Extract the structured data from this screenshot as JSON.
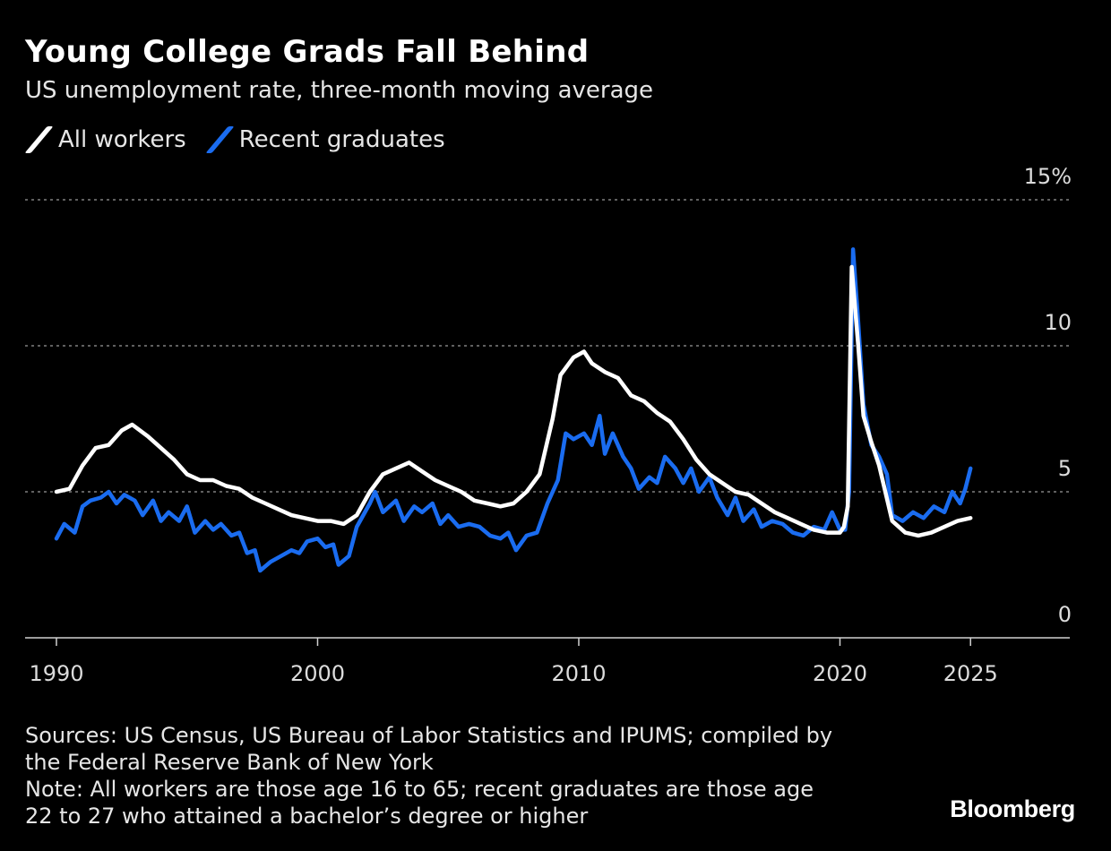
{
  "header": {
    "title": "Young College Grads Fall Behind",
    "subtitle": "US unemployment rate, three-month moving average"
  },
  "legend": [
    {
      "label": "All workers",
      "color": "#ffffff"
    },
    {
      "label": "Recent graduates",
      "color": "#1a6cf0"
    }
  ],
  "footer": {
    "sources_line1": "Sources: US Census, US Bureau of Labor Statistics and IPUMS; compiled by",
    "sources_line2": "the Federal Reserve Bank of New York",
    "note_line1": "Note: All workers are those age 16 to 65; recent graduates are those age",
    "note_line2": "22 to 27 who attained a bachelor’s degree or higher",
    "brand": "Bloomberg"
  },
  "chart_data": {
    "type": "line",
    "title": "Young College Grads Fall Behind",
    "subtitle": "US unemployment rate, three-month moving average",
    "xlabel": "",
    "ylabel": "",
    "xlim": [
      1988.8,
      2028.8
    ],
    "ylim": [
      0,
      15
    ],
    "x_ticks": [
      1990,
      2000,
      2010,
      2020,
      2025
    ],
    "x_tick_labels": [
      "1990",
      "2000",
      "2010",
      "2020",
      "2025"
    ],
    "y_ticks": [
      0,
      5,
      10,
      15
    ],
    "y_tick_labels": [
      "0",
      "5",
      "10",
      "15%"
    ],
    "grid": true,
    "legend_position": "top-left",
    "series": [
      {
        "name": "All workers",
        "color": "#ffffff",
        "points": [
          [
            1990.0,
            5.0
          ],
          [
            1990.5,
            5.1
          ],
          [
            1991.0,
            5.9
          ],
          [
            1991.5,
            6.5
          ],
          [
            1992.0,
            6.6
          ],
          [
            1992.5,
            7.1
          ],
          [
            1992.9,
            7.3
          ],
          [
            1993.5,
            6.9
          ],
          [
            1994.0,
            6.5
          ],
          [
            1994.5,
            6.1
          ],
          [
            1995.0,
            5.6
          ],
          [
            1995.5,
            5.4
          ],
          [
            1996.0,
            5.4
          ],
          [
            1996.5,
            5.2
          ],
          [
            1997.0,
            5.1
          ],
          [
            1997.5,
            4.8
          ],
          [
            1998.0,
            4.6
          ],
          [
            1998.5,
            4.4
          ],
          [
            1999.0,
            4.2
          ],
          [
            1999.5,
            4.1
          ],
          [
            2000.0,
            4.0
          ],
          [
            2000.5,
            4.0
          ],
          [
            2001.0,
            3.9
          ],
          [
            2001.5,
            4.2
          ],
          [
            2002.0,
            5.0
          ],
          [
            2002.5,
            5.6
          ],
          [
            2003.0,
            5.8
          ],
          [
            2003.5,
            6.0
          ],
          [
            2004.0,
            5.7
          ],
          [
            2004.5,
            5.4
          ],
          [
            2005.0,
            5.2
          ],
          [
            2005.5,
            5.0
          ],
          [
            2006.0,
            4.7
          ],
          [
            2006.5,
            4.6
          ],
          [
            2007.0,
            4.5
          ],
          [
            2007.5,
            4.6
          ],
          [
            2008.0,
            5.0
          ],
          [
            2008.5,
            5.6
          ],
          [
            2009.0,
            7.5
          ],
          [
            2009.3,
            9.0
          ],
          [
            2009.8,
            9.6
          ],
          [
            2010.2,
            9.8
          ],
          [
            2010.5,
            9.4
          ],
          [
            2011.0,
            9.1
          ],
          [
            2011.5,
            8.9
          ],
          [
            2012.0,
            8.3
          ],
          [
            2012.5,
            8.1
          ],
          [
            2013.0,
            7.7
          ],
          [
            2013.5,
            7.4
          ],
          [
            2014.0,
            6.8
          ],
          [
            2014.5,
            6.1
          ],
          [
            2015.0,
            5.6
          ],
          [
            2015.5,
            5.3
          ],
          [
            2016.0,
            5.0
          ],
          [
            2016.5,
            4.9
          ],
          [
            2017.0,
            4.6
          ],
          [
            2017.5,
            4.3
          ],
          [
            2018.0,
            4.1
          ],
          [
            2018.5,
            3.9
          ],
          [
            2019.0,
            3.7
          ],
          [
            2019.5,
            3.6
          ],
          [
            2020.0,
            3.6
          ],
          [
            2020.15,
            3.8
          ],
          [
            2020.3,
            4.5
          ],
          [
            2020.45,
            12.7
          ],
          [
            2020.7,
            10.0
          ],
          [
            2020.9,
            7.6
          ],
          [
            2021.2,
            6.7
          ],
          [
            2021.5,
            5.9
          ],
          [
            2022.0,
            4.0
          ],
          [
            2022.5,
            3.6
          ],
          [
            2023.0,
            3.5
          ],
          [
            2023.5,
            3.6
          ],
          [
            2024.0,
            3.8
          ],
          [
            2024.5,
            4.0
          ],
          [
            2025.0,
            4.1
          ]
        ]
      },
      {
        "name": "Recent graduates",
        "color": "#1a6cf0",
        "points": [
          [
            1990.0,
            3.4
          ],
          [
            1990.3,
            3.9
          ],
          [
            1990.7,
            3.6
          ],
          [
            1991.0,
            4.5
          ],
          [
            1991.3,
            4.7
          ],
          [
            1991.7,
            4.8
          ],
          [
            1992.0,
            5.0
          ],
          [
            1992.3,
            4.6
          ],
          [
            1992.6,
            4.9
          ],
          [
            1993.0,
            4.7
          ],
          [
            1993.3,
            4.2
          ],
          [
            1993.7,
            4.7
          ],
          [
            1994.0,
            4.0
          ],
          [
            1994.3,
            4.3
          ],
          [
            1994.7,
            4.0
          ],
          [
            1995.0,
            4.5
          ],
          [
            1995.3,
            3.6
          ],
          [
            1995.7,
            4.0
          ],
          [
            1996.0,
            3.7
          ],
          [
            1996.3,
            3.9
          ],
          [
            1996.7,
            3.5
          ],
          [
            1997.0,
            3.6
          ],
          [
            1997.3,
            2.9
          ],
          [
            1997.6,
            3.0
          ],
          [
            1997.8,
            2.3
          ],
          [
            1998.2,
            2.6
          ],
          [
            1998.6,
            2.8
          ],
          [
            1999.0,
            3.0
          ],
          [
            1999.3,
            2.9
          ],
          [
            1999.6,
            3.3
          ],
          [
            2000.0,
            3.4
          ],
          [
            2000.3,
            3.1
          ],
          [
            2000.6,
            3.2
          ],
          [
            2000.8,
            2.5
          ],
          [
            2001.2,
            2.8
          ],
          [
            2001.5,
            3.8
          ],
          [
            2002.0,
            4.6
          ],
          [
            2002.2,
            5.0
          ],
          [
            2002.5,
            4.3
          ],
          [
            2003.0,
            4.7
          ],
          [
            2003.3,
            4.0
          ],
          [
            2003.7,
            4.5
          ],
          [
            2004.0,
            4.3
          ],
          [
            2004.4,
            4.6
          ],
          [
            2004.7,
            3.9
          ],
          [
            2005.0,
            4.2
          ],
          [
            2005.4,
            3.8
          ],
          [
            2005.8,
            3.9
          ],
          [
            2006.2,
            3.8
          ],
          [
            2006.6,
            3.5
          ],
          [
            2007.0,
            3.4
          ],
          [
            2007.3,
            3.6
          ],
          [
            2007.6,
            3.0
          ],
          [
            2008.0,
            3.5
          ],
          [
            2008.4,
            3.6
          ],
          [
            2008.8,
            4.6
          ],
          [
            2009.2,
            5.4
          ],
          [
            2009.5,
            7.0
          ],
          [
            2009.8,
            6.8
          ],
          [
            2010.2,
            7.0
          ],
          [
            2010.5,
            6.6
          ],
          [
            2010.8,
            7.6
          ],
          [
            2011.0,
            6.3
          ],
          [
            2011.3,
            7.0
          ],
          [
            2011.7,
            6.2
          ],
          [
            2012.0,
            5.8
          ],
          [
            2012.3,
            5.1
          ],
          [
            2012.7,
            5.5
          ],
          [
            2013.0,
            5.3
          ],
          [
            2013.3,
            6.2
          ],
          [
            2013.7,
            5.8
          ],
          [
            2014.0,
            5.3
          ],
          [
            2014.3,
            5.8
          ],
          [
            2014.6,
            5.0
          ],
          [
            2015.0,
            5.5
          ],
          [
            2015.3,
            4.8
          ],
          [
            2015.7,
            4.2
          ],
          [
            2016.0,
            4.8
          ],
          [
            2016.3,
            4.0
          ],
          [
            2016.7,
            4.4
          ],
          [
            2017.0,
            3.8
          ],
          [
            2017.4,
            4.0
          ],
          [
            2017.8,
            3.9
          ],
          [
            2018.2,
            3.6
          ],
          [
            2018.6,
            3.5
          ],
          [
            2019.0,
            3.8
          ],
          [
            2019.4,
            3.7
          ],
          [
            2019.7,
            4.3
          ],
          [
            2020.0,
            3.7
          ],
          [
            2020.2,
            3.7
          ],
          [
            2020.35,
            5.0
          ],
          [
            2020.5,
            13.3
          ],
          [
            2020.7,
            10.8
          ],
          [
            2020.9,
            8.0
          ],
          [
            2021.2,
            6.6
          ],
          [
            2021.5,
            6.2
          ],
          [
            2021.8,
            5.6
          ],
          [
            2022.0,
            4.2
          ],
          [
            2022.4,
            4.0
          ],
          [
            2022.8,
            4.3
          ],
          [
            2023.2,
            4.1
          ],
          [
            2023.6,
            4.5
          ],
          [
            2024.0,
            4.3
          ],
          [
            2024.3,
            5.0
          ],
          [
            2024.6,
            4.6
          ],
          [
            2024.8,
            5.1
          ],
          [
            2025.0,
            5.8
          ]
        ]
      }
    ]
  }
}
